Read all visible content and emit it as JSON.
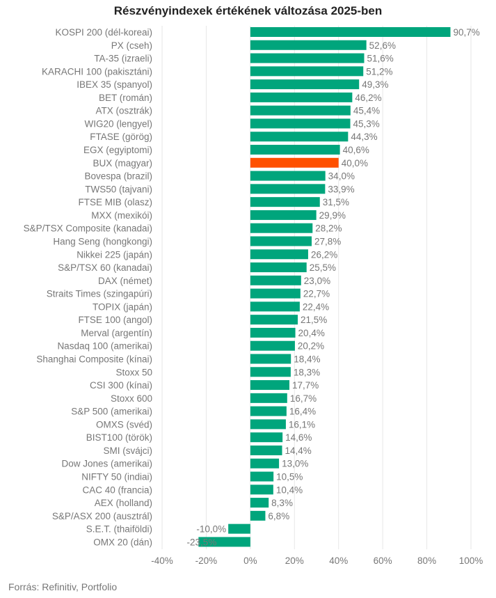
{
  "chart_data": {
    "type": "bar",
    "orientation": "horizontal",
    "title": "Részvényindexek értékének változása 2025-ben",
    "source": "Forrás: Refinitiv, Portfolio",
    "xlim": [
      -40,
      100
    ],
    "xticks": [
      "-40%",
      "-20%",
      "0%",
      "20%",
      "40%",
      "60%",
      "80%",
      "100%"
    ],
    "xtick_values": [
      -40,
      -20,
      0,
      20,
      40,
      60,
      80,
      100
    ],
    "grid": "vertical",
    "bar_color": "#00a57c",
    "highlight_color": "#ff5000",
    "highlight_category": "BUX (magyar)",
    "categories": [
      "KOSPI 200 (dél-koreai)",
      "PX (cseh)",
      "TA-35 (izraeli)",
      "KARACHI 100 (pakisztáni)",
      "IBEX 35 (spanyol)",
      "BET (román)",
      "ATX (osztrák)",
      "WIG20 (lengyel)",
      "FTASE (görög)",
      "EGX (egyiptomi)",
      "BUX (magyar)",
      "Bovespa (brazil)",
      "TWS50 (tajvani)",
      "FTSE MIB (olasz)",
      "MXX (mexikói)",
      "S&P/TSX Composite (kanadai)",
      "Hang Seng (hongkongi)",
      "Nikkei 225 (japán)",
      "S&P/TSX 60 (kanadai)",
      "DAX (német)",
      "Straits Times (szingapúri)",
      "TOPIX (japán)",
      "FTSE 100 (angol)",
      "Merval (argentín)",
      "Nasdaq 100 (amerikai)",
      "Shanghai Composite (kínai)",
      "Stoxx 50",
      "CSI 300 (kínai)",
      "Stoxx 600",
      "S&P 500 (amerikai)",
      "OMXS (svéd)",
      "BIST100 (török)",
      "SMI (svájci)",
      "Dow Jones (amerikai)",
      "NIFTY 50 (indiai)",
      "CAC 40 (francia)",
      "AEX (holland)",
      "S&P/ASX 200 (ausztrál)",
      "S.E.T. (thaiföldi)",
      "OMX 20 (dán)"
    ],
    "values": [
      90.7,
      52.6,
      51.6,
      51.2,
      49.3,
      46.2,
      45.4,
      45.3,
      44.3,
      40.6,
      40.0,
      34.0,
      33.9,
      31.5,
      29.9,
      28.2,
      27.8,
      26.2,
      25.5,
      23.0,
      22.7,
      22.4,
      21.5,
      20.4,
      20.2,
      18.4,
      18.3,
      17.7,
      16.7,
      16.4,
      16.1,
      14.6,
      14.4,
      13.0,
      10.5,
      10.4,
      8.3,
      6.8,
      -10.0,
      -23.5
    ],
    "data_labels": [
      "90,7%",
      "52,6%",
      "51,6%",
      "51,2%",
      "49,3%",
      "46,2%",
      "45,4%",
      "45,3%",
      "44,3%",
      "40,6%",
      "40,0%",
      "34,0%",
      "33,9%",
      "31,5%",
      "29,9%",
      "28,2%",
      "27,8%",
      "26,2%",
      "25,5%",
      "23,0%",
      "22,7%",
      "22,4%",
      "21,5%",
      "20,4%",
      "20,2%",
      "18,4%",
      "18,3%",
      "17,7%",
      "16,7%",
      "16,4%",
      "16,1%",
      "14,6%",
      "14,4%",
      "13,0%",
      "10,5%",
      "10,4%",
      "8,3%",
      "6,8%",
      "-10,0%",
      "-23,5%"
    ]
  }
}
